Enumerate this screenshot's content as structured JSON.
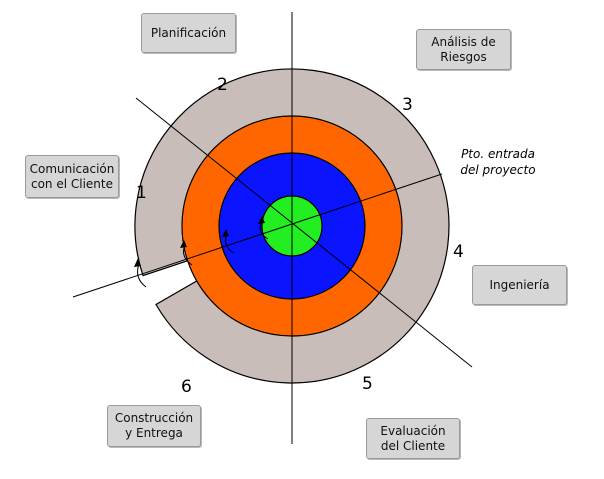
{
  "phases": {
    "planificacion": "Planificación",
    "analisis": "Análisis de\nRiesgos",
    "comunicacion": "Comunicación\ncon el Cliente",
    "ingenieria": "Ingeniería",
    "construccion": "Construcción\ny Entrega",
    "evaluacion": "Evaluación\ndel Cliente"
  },
  "sector_numbers": {
    "n1": "1",
    "n2": "2",
    "n3": "3",
    "n4": "4",
    "n5": "5",
    "n6": "6"
  },
  "entry_label": "Pto. entrada\ndel proyecto",
  "colors": {
    "outer_ring": "#c8bdb8",
    "ring2": "#ff6600",
    "ring3": "#0a14ff",
    "core": "#22ee22",
    "stroke": "#000000"
  }
}
